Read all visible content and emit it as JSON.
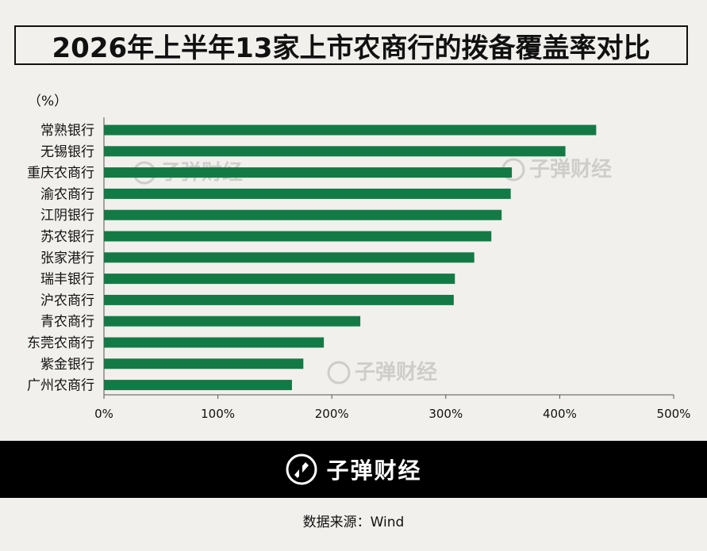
{
  "title": "2026年上半年13家上市农商行的拨备覆盖率对比",
  "unit_label": "（%）",
  "watermark": "子弹财经",
  "footer": {
    "brand": "子弹财经"
  },
  "source": "数据来源：Wind",
  "colors": {
    "bar": "#137a46",
    "background": "#f2f0ec",
    "footer": "#000000"
  },
  "chart_data": {
    "type": "bar",
    "orientation": "horizontal",
    "categories": [
      "常熟银行",
      "无锡银行",
      "重庆农商行",
      "渝农商行",
      "江阴银行",
      "苏农银行",
      "张家港行",
      "瑞丰银行",
      "沪农商行",
      "青农商行",
      "东莞农商行",
      "紫金银行",
      "广州农商行"
    ],
    "values": [
      432,
      405,
      358,
      357,
      349,
      340,
      325,
      308,
      307,
      225,
      193,
      175,
      165
    ],
    "xlim": [
      0,
      500
    ],
    "xticks": [
      "0%",
      "100%",
      "200%",
      "300%",
      "400%",
      "500%"
    ],
    "grid": false,
    "legend": "none"
  }
}
